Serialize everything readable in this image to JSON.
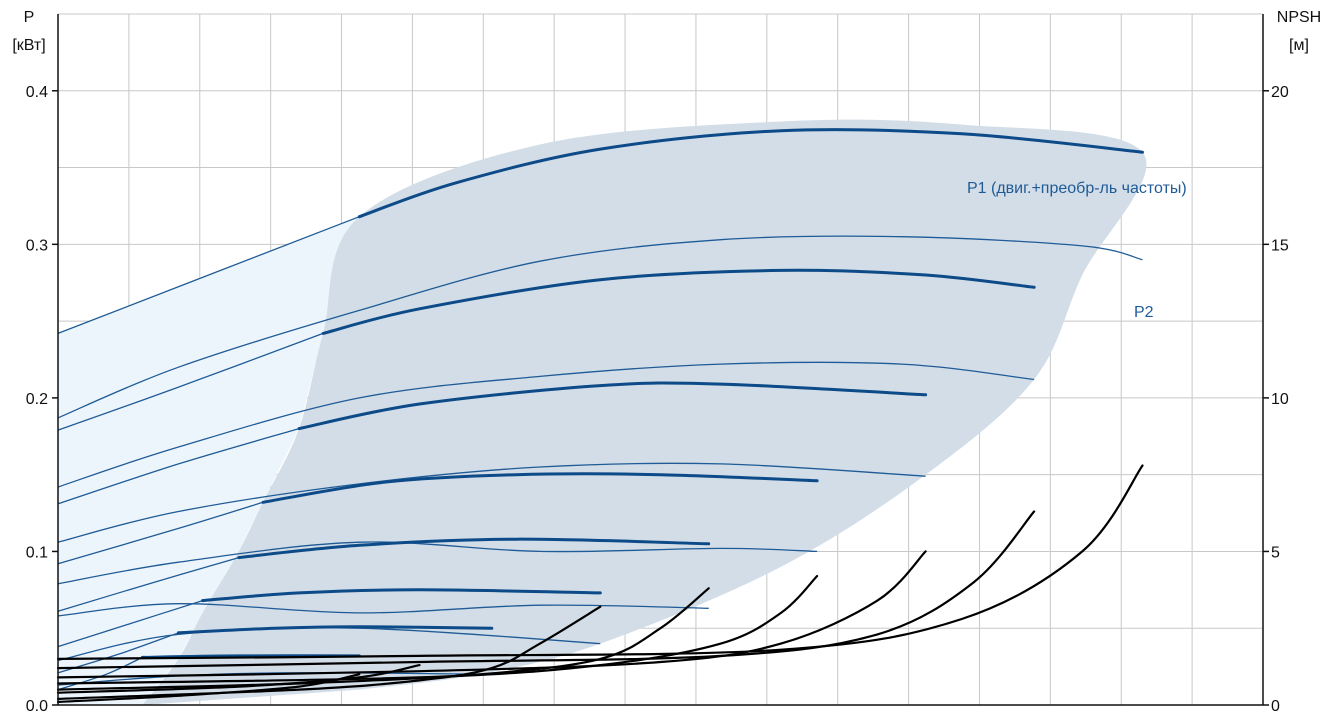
{
  "chart_data": {
    "type": "line",
    "left_axis": {
      "title_line1": "P",
      "title_line2": "[кВт]",
      "ylim": [
        0,
        0.45
      ],
      "ticks": [
        0.0,
        0.1,
        0.2,
        0.3,
        0.4
      ],
      "tick_labels": [
        "0.0",
        "0.1",
        "0.2",
        "0.3",
        "0.4"
      ]
    },
    "right_axis": {
      "title_line1": "NPSH",
      "title_line2": "[м]",
      "ylim": [
        0,
        22.5
      ],
      "ticks": [
        0,
        5,
        10,
        15,
        20
      ],
      "tick_labels": [
        "0",
        "5",
        "10",
        "15",
        "20"
      ]
    },
    "x_axis": {
      "range": [
        0,
        1
      ],
      "tick_labels": []
    },
    "grid": true,
    "colors": {
      "accent": "#0d4a88",
      "thin_line": "#1f5b96",
      "region_fill": "#d2dde8",
      "region_fill_light": "#edf5fc",
      "npsh_line": "#000000",
      "grid": "#c8c8c8"
    },
    "series_labels": {
      "p1": "P1 (двиг.+преобр-ль частоты)",
      "p2": "P2"
    },
    "p1_curves": [
      {
        "thin": [
          [
            0,
            0.242
          ],
          [
            0.25,
            0.318
          ]
        ],
        "bold": [
          [
            0.25,
            0.318
          ],
          [
            0.33,
            0.34
          ],
          [
            0.45,
            0.362
          ],
          [
            0.6,
            0.374
          ],
          [
            0.75,
            0.372
          ],
          [
            0.9,
            0.36
          ]
        ]
      },
      {
        "thin": [
          [
            0,
            0.179
          ],
          [
            0.1,
            0.207
          ],
          [
            0.22,
            0.242
          ]
        ],
        "bold": [
          [
            0.22,
            0.242
          ],
          [
            0.3,
            0.258
          ],
          [
            0.45,
            0.277
          ],
          [
            0.6,
            0.283
          ],
          [
            0.72,
            0.28
          ],
          [
            0.81,
            0.272
          ]
        ]
      },
      {
        "thin": [
          [
            0,
            0.131
          ],
          [
            0.1,
            0.157
          ],
          [
            0.2,
            0.18
          ]
        ],
        "bold": [
          [
            0.2,
            0.18
          ],
          [
            0.3,
            0.196
          ],
          [
            0.45,
            0.208
          ],
          [
            0.55,
            0.209
          ],
          [
            0.72,
            0.202
          ]
        ]
      },
      {
        "thin": [
          [
            0,
            0.092
          ],
          [
            0.1,
            0.115
          ],
          [
            0.17,
            0.132
          ]
        ],
        "bold": [
          [
            0.17,
            0.132
          ],
          [
            0.27,
            0.145
          ],
          [
            0.38,
            0.15
          ],
          [
            0.5,
            0.15
          ],
          [
            0.63,
            0.146
          ]
        ]
      },
      {
        "thin": [
          [
            0,
            0.061
          ],
          [
            0.08,
            0.08
          ],
          [
            0.15,
            0.096
          ]
        ],
        "bold": [
          [
            0.15,
            0.096
          ],
          [
            0.25,
            0.104
          ],
          [
            0.38,
            0.108
          ],
          [
            0.54,
            0.105
          ]
        ]
      },
      {
        "thin": [
          [
            0,
            0.038
          ],
          [
            0.06,
            0.053
          ],
          [
            0.12,
            0.068
          ]
        ],
        "bold": [
          [
            0.12,
            0.068
          ],
          [
            0.2,
            0.073
          ],
          [
            0.3,
            0.075
          ],
          [
            0.45,
            0.073
          ]
        ]
      },
      {
        "thin": [
          [
            0,
            0.021
          ],
          [
            0.05,
            0.033
          ],
          [
            0.1,
            0.047
          ]
        ],
        "bold": [
          [
            0.1,
            0.047
          ],
          [
            0.18,
            0.05
          ],
          [
            0.25,
            0.051
          ],
          [
            0.36,
            0.05
          ]
        ]
      },
      {
        "thin": [
          [
            0,
            0.01
          ],
          [
            0.04,
            0.02
          ],
          [
            0.07,
            0.031
          ]
        ],
        "bold": [
          [
            0.07,
            0.031
          ],
          [
            0.15,
            0.032
          ],
          [
            0.25,
            0.032
          ]
        ]
      }
    ],
    "p2_curves": [
      [
        [
          0,
          0.187
        ],
        [
          0.1,
          0.22
        ],
        [
          0.25,
          0.257
        ],
        [
          0.4,
          0.289
        ],
        [
          0.55,
          0.303
        ],
        [
          0.7,
          0.305
        ],
        [
          0.85,
          0.299
        ],
        [
          0.9,
          0.29
        ]
      ],
      [
        [
          0,
          0.142
        ],
        [
          0.1,
          0.168
        ],
        [
          0.25,
          0.2
        ],
        [
          0.4,
          0.214
        ],
        [
          0.55,
          0.222
        ],
        [
          0.7,
          0.222
        ],
        [
          0.81,
          0.212
        ]
      ],
      [
        [
          0,
          0.106
        ],
        [
          0.1,
          0.126
        ],
        [
          0.25,
          0.144
        ],
        [
          0.4,
          0.155
        ],
        [
          0.55,
          0.157
        ],
        [
          0.72,
          0.149
        ]
      ],
      [
        [
          0,
          0.079
        ],
        [
          0.1,
          0.093
        ],
        [
          0.25,
          0.106
        ],
        [
          0.4,
          0.1
        ],
        [
          0.55,
          0.102
        ],
        [
          0.63,
          0.1
        ]
      ],
      [
        [
          0,
          0.058
        ],
        [
          0.1,
          0.066
        ],
        [
          0.25,
          0.06
        ],
        [
          0.4,
          0.065
        ],
        [
          0.54,
          0.063
        ]
      ],
      [
        [
          0,
          0.029
        ],
        [
          0.1,
          0.046
        ],
        [
          0.25,
          0.05
        ],
        [
          0.45,
          0.04
        ]
      ],
      [
        [
          0,
          0.013
        ],
        [
          0.1,
          0.019
        ],
        [
          0.2,
          0.021
        ],
        [
          0.36,
          0.02
        ]
      ]
    ],
    "operating_region_dark": [
      [
        0.07,
        0
      ],
      [
        0.1,
        0.03
      ],
      [
        0.12,
        0.06
      ],
      [
        0.15,
        0.1
      ],
      [
        0.17,
        0.132
      ],
      [
        0.2,
        0.18
      ],
      [
        0.22,
        0.242
      ],
      [
        0.25,
        0.318
      ],
      [
        0.4,
        0.365
      ],
      [
        0.6,
        0.38
      ],
      [
        0.75,
        0.378
      ],
      [
        0.9,
        0.36
      ],
      [
        0.85,
        0.28
      ],
      [
        0.81,
        0.212
      ],
      [
        0.72,
        0.15
      ],
      [
        0.6,
        0.09
      ],
      [
        0.45,
        0.04
      ],
      [
        0.35,
        0.02
      ],
      [
        0.25,
        0.01
      ]
    ],
    "operating_region_light": [
      [
        0,
        0
      ],
      [
        0,
        0.242
      ],
      [
        0.25,
        0.318
      ],
      [
        0.22,
        0.242
      ],
      [
        0.2,
        0.18
      ],
      [
        0.17,
        0.132
      ],
      [
        0.15,
        0.1
      ],
      [
        0.12,
        0.06
      ],
      [
        0.1,
        0.03
      ],
      [
        0.07,
        0
      ]
    ],
    "npsh_curves": [
      [
        [
          0,
          0.2
        ],
        [
          0.2,
          0.5
        ],
        [
          0.3,
          0.8
        ],
        [
          0.36,
          1.2
        ],
        [
          0.4,
          2.0
        ],
        [
          0.45,
          3.2
        ]
      ],
      [
        [
          0,
          0.5
        ],
        [
          0.2,
          0.7
        ],
        [
          0.35,
          1.0
        ],
        [
          0.45,
          1.5
        ],
        [
          0.5,
          2.5
        ],
        [
          0.54,
          3.8
        ]
      ],
      [
        [
          0,
          0.7
        ],
        [
          0.3,
          0.9
        ],
        [
          0.45,
          1.3
        ],
        [
          0.55,
          2.0
        ],
        [
          0.6,
          3.0
        ],
        [
          0.63,
          4.2
        ]
      ],
      [
        [
          0,
          0.9
        ],
        [
          0.3,
          1.1
        ],
        [
          0.5,
          1.4
        ],
        [
          0.6,
          2.0
        ],
        [
          0.68,
          3.4
        ],
        [
          0.72,
          5.0
        ]
      ],
      [
        [
          0,
          1.2
        ],
        [
          0.3,
          1.4
        ],
        [
          0.55,
          1.6
        ],
        [
          0.68,
          2.3
        ],
        [
          0.76,
          4.0
        ],
        [
          0.81,
          6.3
        ]
      ],
      [
        [
          0,
          1.5
        ],
        [
          0.3,
          1.6
        ],
        [
          0.6,
          1.8
        ],
        [
          0.75,
          2.8
        ],
        [
          0.85,
          5.0
        ],
        [
          0.9,
          7.8
        ]
      ],
      [
        [
          0,
          0.1
        ],
        [
          0.1,
          0.3
        ],
        [
          0.2,
          0.6
        ],
        [
          0.25,
          1.0
        ]
      ],
      [
        [
          0,
          0.4
        ],
        [
          0.15,
          0.6
        ],
        [
          0.25,
          0.9
        ],
        [
          0.3,
          1.3
        ]
      ]
    ]
  }
}
